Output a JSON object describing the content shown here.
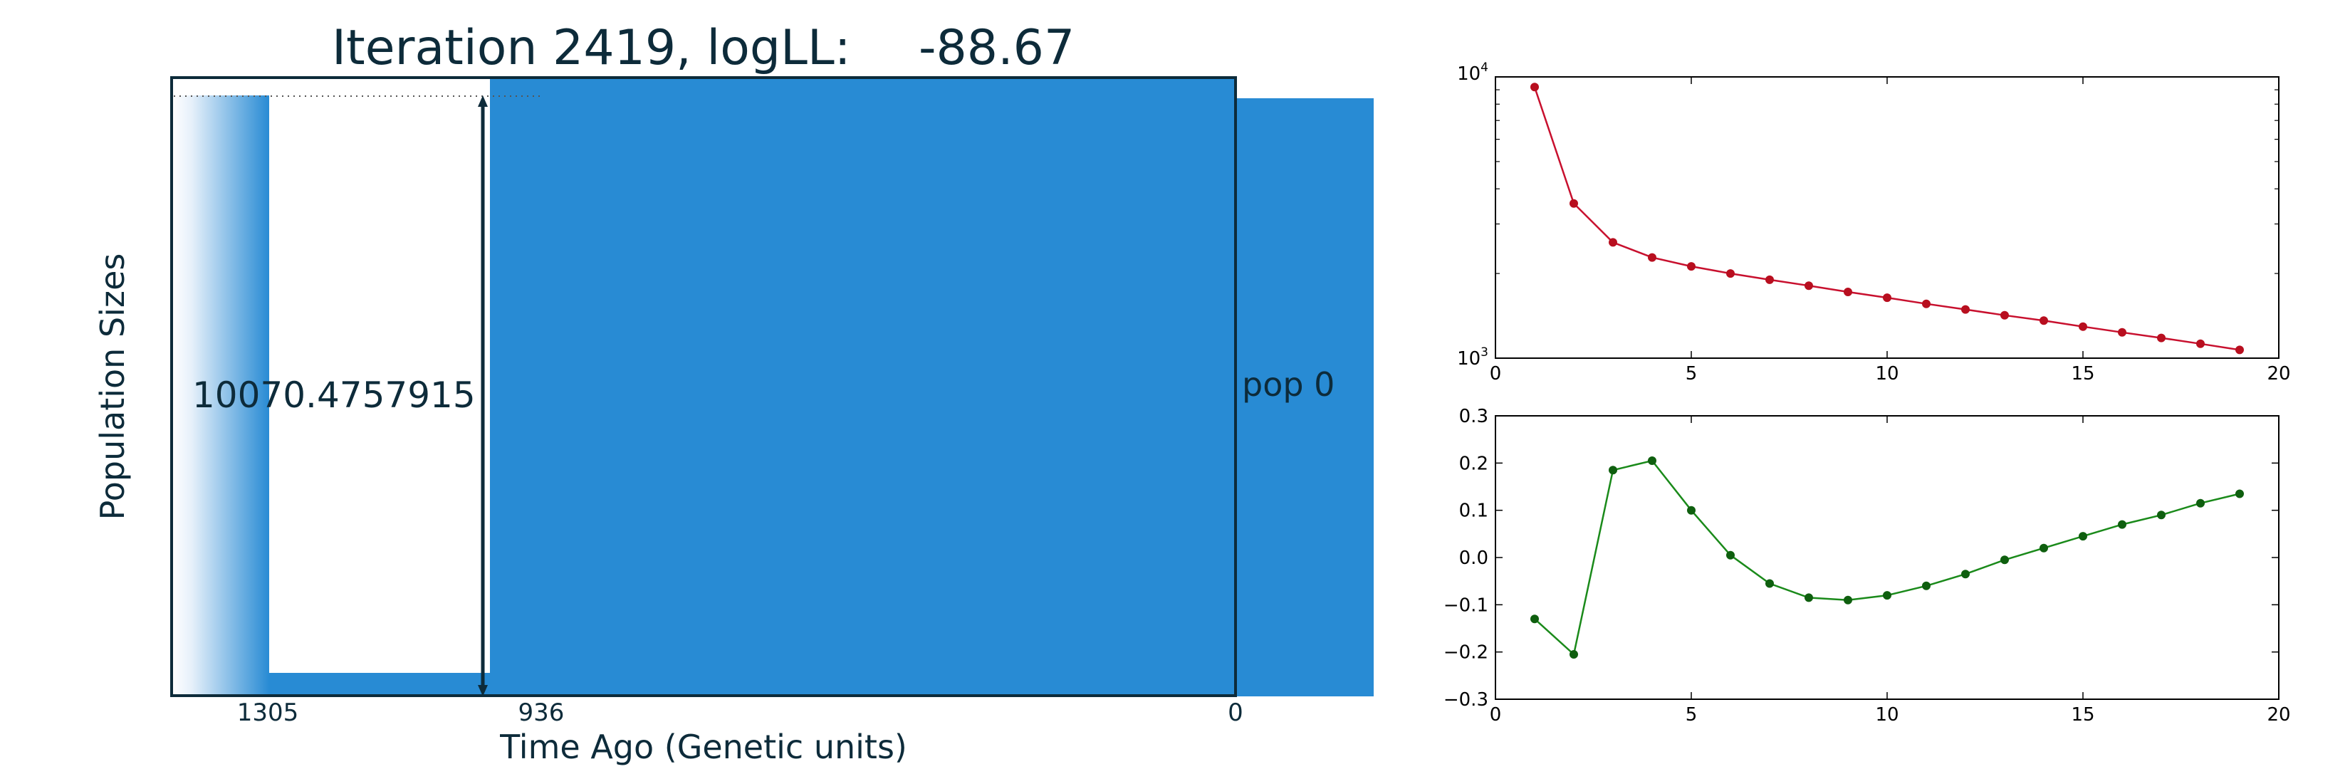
{
  "colors": {
    "pop_fill": "#288bd4",
    "frame": "#0d2b3a",
    "text": "#0d2b3a",
    "series_top": "#c8102e",
    "series_top_marker": "#b80f1f",
    "series_bottom": "#1a8a1a",
    "series_bottom_marker": "#0f5f0f"
  },
  "chart_data": [
    {
      "type": "area",
      "title_prefix": "Iteration 2419, logLL:",
      "title_value": "-88.67",
      "xlabel": "Time Ago (Genetic units)",
      "ylabel": "Population Sizes",
      "x_ticks": [
        {
          "value": 1305,
          "label": "1305"
        },
        {
          "value": 936,
          "label": "936"
        },
        {
          "value": 0,
          "label": "0"
        }
      ],
      "population_label": "pop 0",
      "size_annotation": "10070.4757915",
      "grid": false
    },
    {
      "type": "line",
      "yscale": "log",
      "xlim": [
        0,
        20
      ],
      "ylim": [
        1000,
        10000
      ],
      "x_ticks": [
        0,
        5,
        10,
        15,
        20
      ],
      "y_ticks": [
        "10^4",
        "10^3"
      ],
      "series": [
        {
          "x": [
            1,
            2,
            3,
            4,
            5,
            6,
            7,
            8,
            9,
            10,
            11,
            12,
            13,
            14,
            15,
            16,
            17,
            18,
            19
          ],
          "values": [
            9200,
            3550,
            2580,
            2280,
            2120,
            2000,
            1900,
            1810,
            1720,
            1640,
            1560,
            1490,
            1420,
            1360,
            1295,
            1235,
            1180,
            1125,
            1070
          ]
        }
      ]
    },
    {
      "type": "line",
      "xlim": [
        0,
        20
      ],
      "ylim": [
        -0.3,
        0.3
      ],
      "x_ticks": [
        0,
        5,
        10,
        15,
        20
      ],
      "y_ticks": [
        "0.3",
        "0.2",
        "0.1",
        "0.0",
        "−0.1",
        "−0.2",
        "−0.3"
      ],
      "series": [
        {
          "x": [
            1,
            2,
            3,
            4,
            5,
            6,
            7,
            8,
            9,
            10,
            11,
            12,
            13,
            14,
            15,
            16,
            17,
            18,
            19
          ],
          "values": [
            -0.13,
            -0.205,
            0.185,
            0.205,
            0.1,
            0.005,
            -0.055,
            -0.085,
            -0.09,
            -0.08,
            -0.06,
            -0.035,
            -0.005,
            0.02,
            0.045,
            0.07,
            0.09,
            0.115,
            0.135
          ]
        }
      ]
    }
  ]
}
